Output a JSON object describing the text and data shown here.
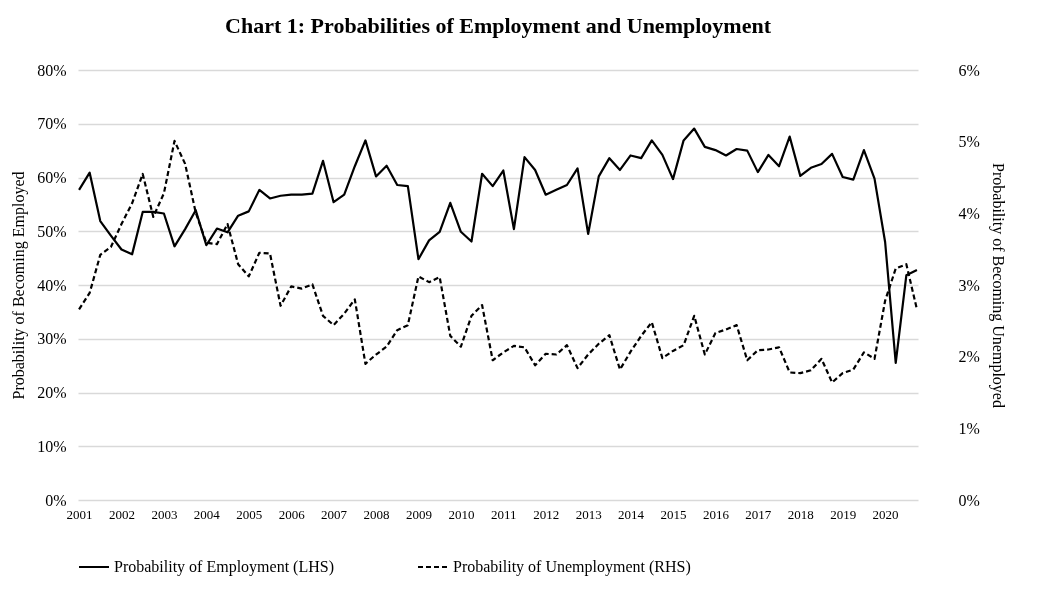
{
  "chart_data": {
    "type": "line",
    "title": "Chart 1: Probabilities of Employment and Unemployment",
    "categories": [
      "2001",
      null,
      null,
      null,
      "2002",
      null,
      null,
      null,
      "2003",
      null,
      null,
      null,
      "2004",
      null,
      null,
      null,
      "2005",
      null,
      null,
      null,
      "2006",
      null,
      null,
      null,
      "2007",
      null,
      null,
      null,
      "2008",
      null,
      null,
      null,
      "2009",
      null,
      null,
      null,
      "2010",
      null,
      null,
      null,
      "2011",
      null,
      null,
      null,
      "2012",
      null,
      null,
      null,
      "2013",
      null,
      null,
      null,
      "2014",
      null,
      null,
      null,
      "2015",
      null,
      null,
      null,
      "2016",
      null,
      null,
      null,
      "2017",
      null,
      null,
      null,
      "2018",
      null,
      null,
      null,
      "2019",
      null,
      null,
      null,
      "2020",
      null,
      null,
      null
    ],
    "ylabel": "Probability of Becoming Employed",
    "y2label": "Probability of Becoming Unemployed",
    "ylim": [
      0,
      80
    ],
    "yticks": [
      {
        "value": 0,
        "label": "0%"
      },
      {
        "value": 10,
        "label": "10%"
      },
      {
        "value": 20,
        "label": "20%"
      },
      {
        "value": 30,
        "label": "30%"
      },
      {
        "value": 40,
        "label": "40%"
      },
      {
        "value": 50,
        "label": "50%"
      },
      {
        "value": 60,
        "label": "60%"
      },
      {
        "value": 70,
        "label": "70%"
      },
      {
        "value": 80,
        "label": "80%"
      }
    ],
    "y2lim": [
      0,
      6
    ],
    "y2ticks": [
      {
        "value": 0,
        "label": "0%"
      },
      {
        "value": 1,
        "label": "1%"
      },
      {
        "value": 2,
        "label": "2%"
      },
      {
        "value": 3,
        "label": "3%"
      },
      {
        "value": 4,
        "label": "4%"
      },
      {
        "value": 5,
        "label": "5%"
      },
      {
        "value": 6,
        "label": "6%"
      }
    ],
    "grid": "y",
    "legend": "bottom",
    "series": [
      {
        "name": "Probability of Employment (LHS)",
        "color": "#000000",
        "line_style": "solid",
        "values": [
          57.7,
          60.9,
          51.9,
          49.2,
          46.6,
          45.7,
          53.6,
          53.6,
          53.3,
          47.2,
          50.4,
          53.9,
          47.4,
          50.5,
          49.8,
          52.9,
          53.7,
          57.7,
          56.1,
          56.6,
          56.8,
          56.8,
          57.0,
          63.1,
          55.4,
          56.8,
          62.1,
          66.9,
          60.2,
          62.2,
          58.6,
          58.4,
          44.8,
          48.3,
          49.9,
          55.3,
          49.9,
          48.1,
          60.7,
          58.4,
          61.3,
          50.4,
          63.8,
          61.4,
          56.8,
          57.7,
          58.6,
          61.7,
          49.5,
          60.2,
          63.6,
          61.4,
          64.1,
          63.6,
          66.9,
          64.2,
          59.7,
          66.9,
          69.1,
          65.7,
          65.1,
          64.1,
          65.3,
          65.0,
          61.0,
          64.2,
          62.1,
          67.6,
          60.3,
          61.8,
          62.5,
          64.4,
          60.1,
          59.6,
          65.1,
          59.8,
          48.0,
          25.5,
          41.8,
          42.8
        ]
      },
      {
        "name": "Probability of Unemployment (RHS)",
        "color": "#000000",
        "line_style": "dashed",
        "axis": "y2",
        "values": [
          2.66,
          2.89,
          3.42,
          3.53,
          3.85,
          4.14,
          4.55,
          3.95,
          4.28,
          5.01,
          4.69,
          4.01,
          3.59,
          3.57,
          3.85,
          3.29,
          3.12,
          3.45,
          3.44,
          2.71,
          2.98,
          2.95,
          3.01,
          2.57,
          2.44,
          2.6,
          2.8,
          1.9,
          2.03,
          2.14,
          2.37,
          2.44,
          3.12,
          3.04,
          3.11,
          2.29,
          2.14,
          2.57,
          2.72,
          1.95,
          2.06,
          2.15,
          2.13,
          1.88,
          2.04,
          2.03,
          2.16,
          1.84,
          2.03,
          2.18,
          2.3,
          1.82,
          2.07,
          2.29,
          2.48,
          1.98,
          2.08,
          2.16,
          2.57,
          2.03,
          2.33,
          2.38,
          2.44,
          1.95,
          2.09,
          2.1,
          2.13,
          1.78,
          1.77,
          1.81,
          1.97,
          1.64,
          1.77,
          1.82,
          2.06,
          1.97,
          2.78,
          3.23,
          3.29,
          2.66
        ]
      }
    ]
  }
}
